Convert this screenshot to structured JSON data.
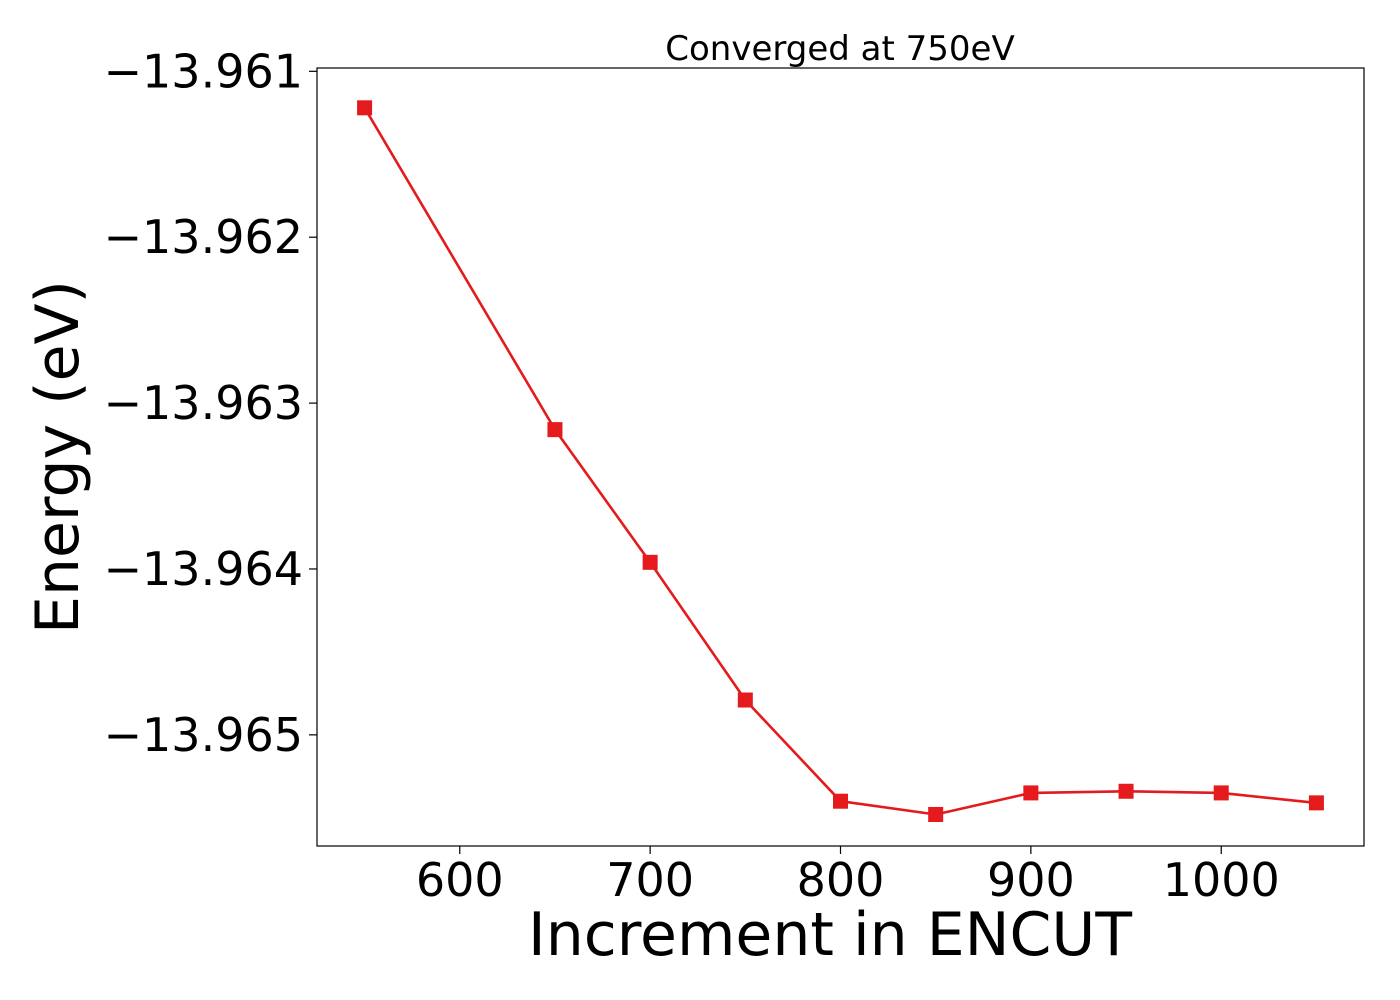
{
  "chart_data": {
    "type": "line",
    "title": "Converged at 750eV",
    "xlabel": "Increment in ENCUT",
    "ylabel": "Energy (eV)",
    "x": [
      550,
      600,
      650,
      700,
      750,
      800,
      850,
      900,
      950,
      1000,
      1050
    ],
    "series": [
      {
        "values": [
          -13.96122,
          null,
          -13.96316,
          -13.96396,
          -13.96479,
          -13.9654,
          -13.96548,
          -13.96535,
          -13.96534,
          -13.96535,
          -13.96541
        ],
        "color": "#e41a1c",
        "marker": "square"
      }
    ],
    "xlim": [
      525,
      1075
    ],
    "ylim": [
      -13.96567,
      -13.96098
    ],
    "xticks": [
      600,
      700,
      800,
      900,
      1000
    ],
    "xtick_labels": [
      "600",
      "700",
      "800",
      "900",
      "1000"
    ],
    "yticks": [
      -13.961,
      -13.962,
      -13.963,
      -13.964,
      -13.965
    ],
    "ytick_labels": [
      "−13.961",
      "−13.962",
      "−13.963",
      "−13.964",
      "−13.965"
    ],
    "grid": false,
    "legend": "none"
  }
}
